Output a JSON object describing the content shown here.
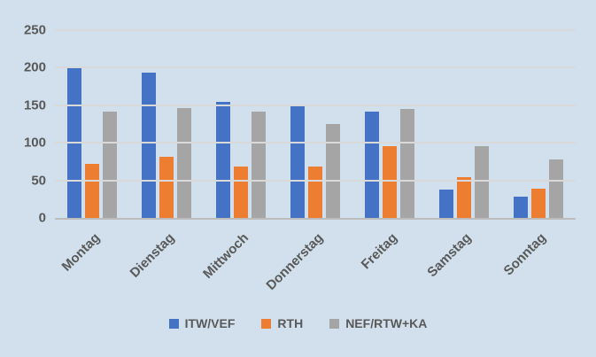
{
  "chart_data": {
    "type": "bar",
    "title": "",
    "xlabel": "",
    "ylabel": "",
    "categories": [
      "Montag",
      "Dienstag",
      "Mittwoch",
      "Donnerstag",
      "Freitag",
      "Samstag",
      "Sonntag"
    ],
    "series": [
      {
        "name": "ITW/VEF",
        "color": "#4472c4",
        "values": [
          199,
          194,
          154,
          150,
          142,
          38,
          28
        ]
      },
      {
        "name": "RTH",
        "color": "#ed7d31",
        "values": [
          72,
          81,
          69,
          69,
          95,
          54,
          39
        ]
      },
      {
        "name": "NEF/RTW+KA",
        "color": "#a5a5a5",
        "values": [
          141,
          146,
          141,
          125,
          145,
          95,
          78
        ]
      }
    ],
    "ylim": [
      0,
      250
    ],
    "yticks": [
      0,
      50,
      100,
      150,
      200,
      250
    ],
    "grid": true,
    "legend_position": "bottom"
  },
  "colors": {
    "background": "#d1e0ec",
    "gridline": "#d9d9d9",
    "axis_line": "#bcbcbc",
    "text": "#595959"
  }
}
